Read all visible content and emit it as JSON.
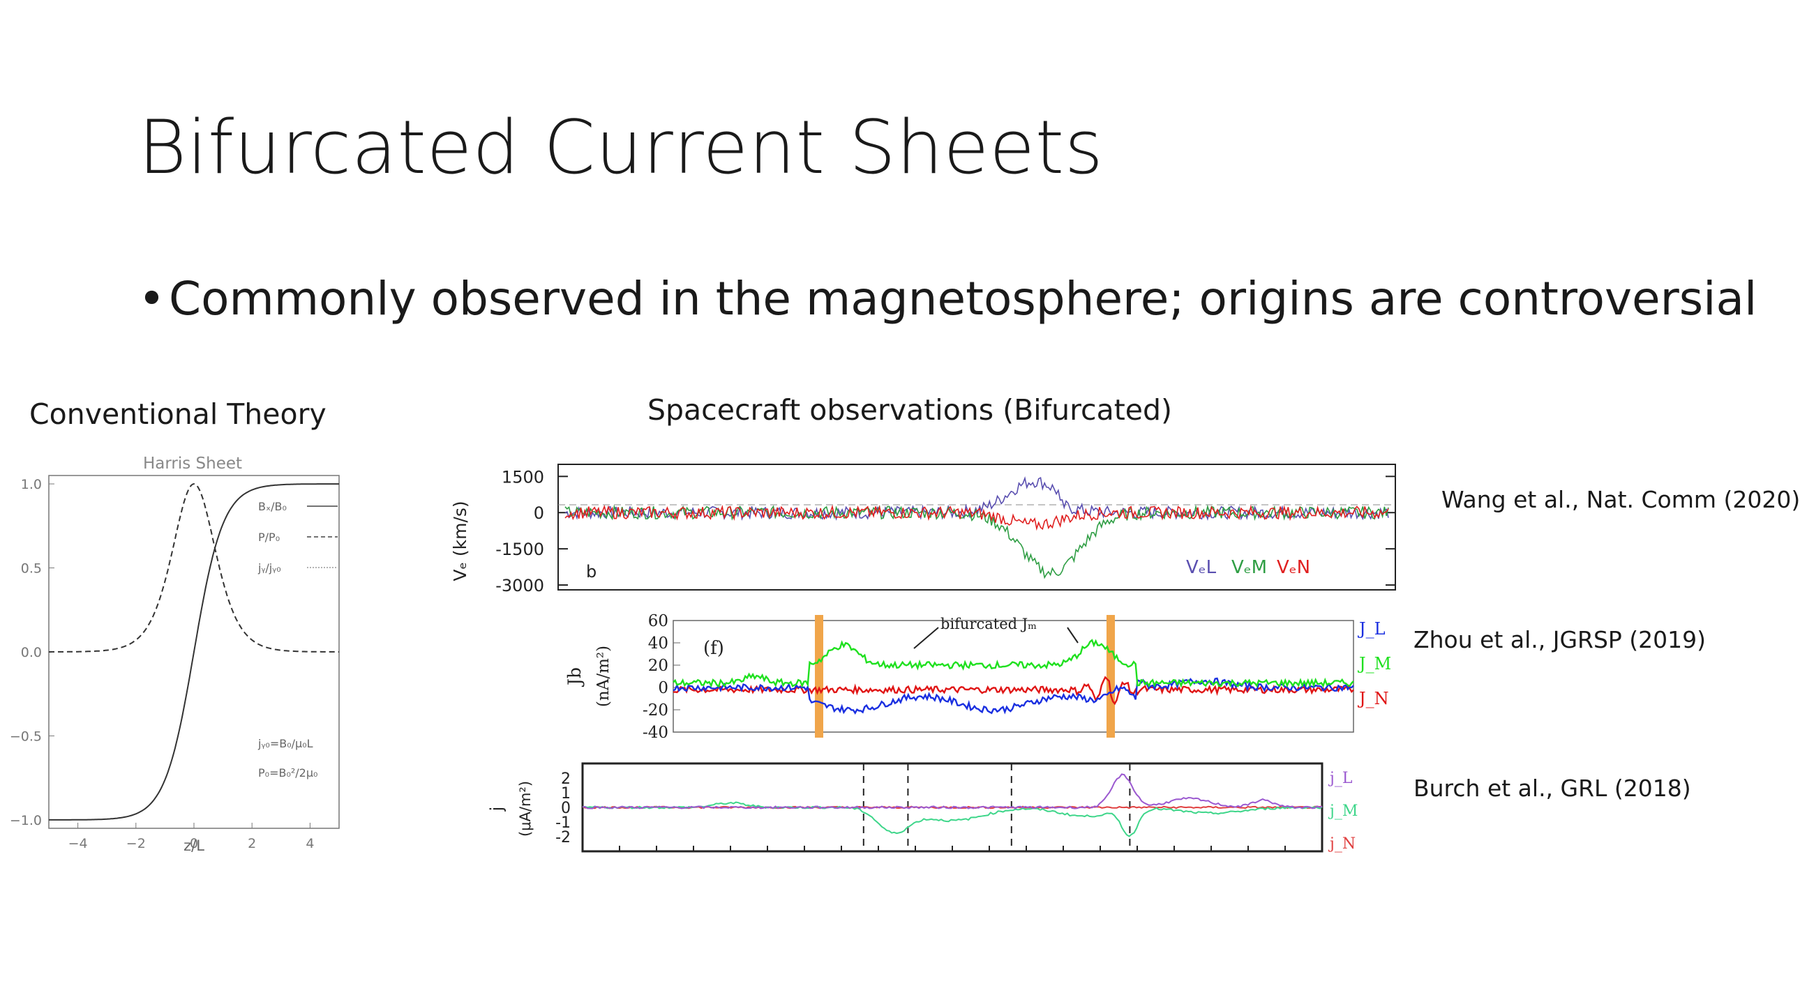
{
  "slide": {
    "title": "Bifurcated Current Sheets",
    "bullet": "Commonly observed in the magnetosphere; origins are controversial",
    "left_label": "Conventional Theory",
    "center_label": "Spacecraft observations (Bifurcated)"
  },
  "citations": {
    "wang": "Wang et al., Nat. Comm (2020)",
    "zhou": "Zhou et al., JGRSP (2019)",
    "burch": "Burch et al., GRL (2018)"
  },
  "chart_data": [
    {
      "type": "line",
      "title": "Harris Sheet",
      "xlabel": "z/L",
      "xlim": [
        -5,
        5
      ],
      "ylim": [
        -1.05,
        1.05
      ],
      "xticks": [
        "−4",
        "−2",
        "0",
        "2",
        "4"
      ],
      "yticks": [
        "1.0",
        "0.5",
        "0.0",
        "−0.5",
        "−1.0"
      ],
      "legend": [
        "Bₓ/B₀",
        "P/P₀",
        "jᵧ/jᵧ₀"
      ],
      "annotations": [
        "jᵧ₀=B₀/μ₀L",
        "P₀=B₀²/2μ₀"
      ],
      "series": [
        {
          "name": "Bₓ/B₀",
          "style": "solid",
          "function": "tanh(z)"
        },
        {
          "name": "P/P₀",
          "style": "dashed",
          "function": "sech^2(z)"
        }
      ]
    },
    {
      "type": "line",
      "panel": "b",
      "ylabel": "Vₑ (km/s)",
      "yticks": [
        "1500",
        "0",
        "-1500",
        "-3000"
      ],
      "ylim": [
        -3200,
        2000
      ],
      "legend": [
        "VₑL",
        "VₑM",
        "VₑN"
      ],
      "colors": {
        "VeL": "#5a4fb0",
        "VeM": "#2f9e44",
        "VeN": "#e02020"
      },
      "series": [
        {
          "name": "VeL",
          "features": "noise ±300, positive bump to ~1500 near center"
        },
        {
          "name": "VeM",
          "features": "noise ±300, negative dip to ~-2600 near center"
        },
        {
          "name": "VeN",
          "features": "noise ±300, small dip near center"
        }
      ]
    },
    {
      "type": "line",
      "panel": "(f)",
      "ylabel": "Jb",
      "yunit": "(nA/m²)",
      "yticks": [
        "60",
        "40",
        "20",
        "0",
        "-20",
        "-40"
      ],
      "ylim": [
        -40,
        60
      ],
      "annotation": "bifurcated Jₘ",
      "legend": [
        "J_L",
        "J_M",
        "J_N"
      ],
      "colors": {
        "JL": "#1a2fe0",
        "JM": "#1fe01f",
        "JN": "#e01515"
      },
      "series": [
        {
          "name": "J_M",
          "features": "two peaks ~38 and ~42, plateau ~20 between"
        },
        {
          "name": "J_L",
          "features": "dips to ~-20 in middle, ~10 near edges"
        },
        {
          "name": "J_N",
          "features": "near 0, oscillation near right band"
        }
      ]
    },
    {
      "type": "line",
      "ylabel": "j",
      "yunit": "(μA/m²)",
      "yticks": [
        "2",
        "1",
        "0",
        "-1",
        "-2"
      ],
      "ylim": [
        -3,
        3
      ],
      "legend": [
        "j_L",
        "j_M",
        "j_N"
      ],
      "colors": {
        "jL": "#9b59d0",
        "jM": "#3ed68a",
        "jN": "#e04040"
      },
      "series": [
        {
          "name": "j_L",
          "features": "near 0, peak ~2.2 at right third"
        },
        {
          "name": "j_M",
          "features": "dips to ~-2 at two locations"
        },
        {
          "name": "j_N",
          "features": "near 0"
        }
      ]
    }
  ]
}
